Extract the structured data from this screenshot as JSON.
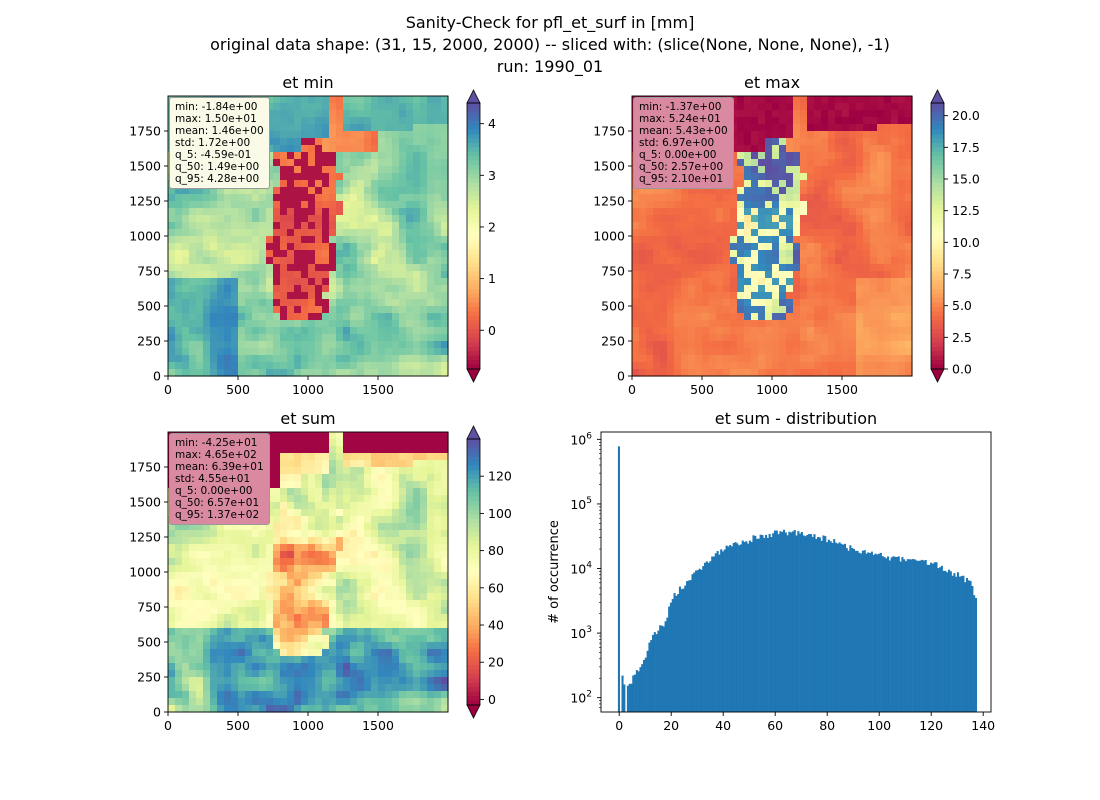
{
  "figure": {
    "title_lines": [
      "Sanity-Check for pfl_et_surf in [mm]",
      "original data shape: (31, 15, 2000, 2000) -- sliced with: (slice(None, None, None), -1)",
      "run: 1990_01"
    ]
  },
  "chart_data": [
    {
      "type": "heatmap",
      "title": "et min",
      "x_ticks": [
        "0",
        "500",
        "1000",
        "1500"
      ],
      "y_ticks": [
        "0",
        "250",
        "500",
        "750",
        "1000",
        "1250",
        "1500",
        "1750"
      ],
      "xlim": [
        0,
        2000
      ],
      "ylim": [
        0,
        2000
      ],
      "colormap": "Spectral",
      "colorbar": {
        "range": [
          -0.75,
          4.4
        ],
        "ticks": [
          "0",
          "1",
          "2",
          "3",
          "4"
        ],
        "tick_values": [
          0,
          1,
          2,
          3,
          4
        ],
        "extend": "both"
      },
      "stats": [
        "min: -1.84e+00",
        "max: 1.50e+01",
        "mean: 1.46e+00",
        "std: 1.72e+00",
        "q_5: -4.59e-01",
        "q_50: 1.49e+00",
        "q_95: 4.28e+00"
      ],
      "stats_box_color": "#f9fbe8"
    },
    {
      "type": "heatmap",
      "title": "et max",
      "x_ticks": [
        "0",
        "500",
        "1000",
        "1500"
      ],
      "y_ticks": [
        "0",
        "250",
        "500",
        "750",
        "1000",
        "1250",
        "1500",
        "1750"
      ],
      "xlim": [
        0,
        2000
      ],
      "ylim": [
        0,
        2000
      ],
      "colormap": "Spectral",
      "colorbar": {
        "range": [
          0,
          21.0
        ],
        "ticks": [
          "0.0",
          "2.5",
          "5.0",
          "7.5",
          "10.0",
          "12.5",
          "15.0",
          "17.5",
          "20.0"
        ],
        "tick_values": [
          0,
          2.5,
          5,
          7.5,
          10,
          12.5,
          15,
          17.5,
          20
        ],
        "extend": "both"
      },
      "stats": [
        "min: -1.37e+00",
        "max: 5.24e+01",
        "mean: 5.43e+00",
        "std: 6.97e+00",
        "q_5: 0.00e+00",
        "q_50: 2.57e+00",
        "q_95: 2.10e+01"
      ],
      "stats_box_color": "#d98aa1"
    },
    {
      "type": "heatmap",
      "title": "et sum",
      "x_ticks": [
        "0",
        "500",
        "1000",
        "1500"
      ],
      "y_ticks": [
        "0",
        "250",
        "500",
        "750",
        "1000",
        "1250",
        "1500",
        "1750"
      ],
      "xlim": [
        0,
        2000
      ],
      "ylim": [
        0,
        2000
      ],
      "colormap": "Spectral",
      "colorbar": {
        "range": [
          -3,
          140
        ],
        "ticks": [
          "0",
          "20",
          "40",
          "60",
          "80",
          "100",
          "120"
        ],
        "tick_values": [
          0,
          20,
          40,
          60,
          80,
          100,
          120
        ],
        "extend": "both"
      },
      "stats": [
        "min: -4.25e+01",
        "max: 4.65e+02",
        "mean: 6.39e+01",
        "std: 4.55e+01",
        "q_5: 0.00e+00",
        "q_50: 6.57e+01",
        "q_95: 1.37e+02"
      ],
      "stats_box_color": "#d98aa1"
    },
    {
      "type": "bar",
      "title": "et sum - distribution",
      "ylabel": "# of occurrence",
      "y_scale": "log",
      "xlim": [
        -7,
        143
      ],
      "ylim": [
        60,
        1300000
      ],
      "x_ticks": [
        0,
        20,
        40,
        60,
        80,
        100,
        120,
        140
      ],
      "y_ticks": [
        {
          "value": 100,
          "base": "10",
          "exp": "2"
        },
        {
          "value": 1000,
          "base": "10",
          "exp": "3"
        },
        {
          "value": 10000,
          "base": "10",
          "exp": "4"
        },
        {
          "value": 100000,
          "base": "10",
          "exp": "5"
        },
        {
          "value": 1000000,
          "base": "10",
          "exp": "6"
        }
      ],
      "bar_color": "#1f77b4",
      "bin_edges": [
        -0.5,
        137.5
      ],
      "bins": 200,
      "spikes": [
        {
          "x": 0,
          "value": 780000
        },
        {
          "x": 1,
          "value": 220
        },
        {
          "x": 2,
          "value": 160
        }
      ],
      "profile_x": [
        3,
        5,
        8,
        10,
        12,
        15,
        18,
        20,
        25,
        30,
        35,
        40,
        45,
        50,
        55,
        60,
        65,
        70,
        75,
        80,
        85,
        90,
        95,
        100,
        105,
        110,
        115,
        120,
        125,
        130,
        135,
        137
      ],
      "profile_values": [
        130,
        190,
        300,
        420,
        800,
        1100,
        1500,
        3500,
        5500,
        9000,
        14000,
        20000,
        24000,
        28000,
        32000,
        35000,
        36000,
        35000,
        32000,
        28000,
        24000,
        20000,
        18000,
        16000,
        14500,
        14000,
        13000,
        12000,
        10000,
        8000,
        6000,
        3500
      ]
    }
  ]
}
